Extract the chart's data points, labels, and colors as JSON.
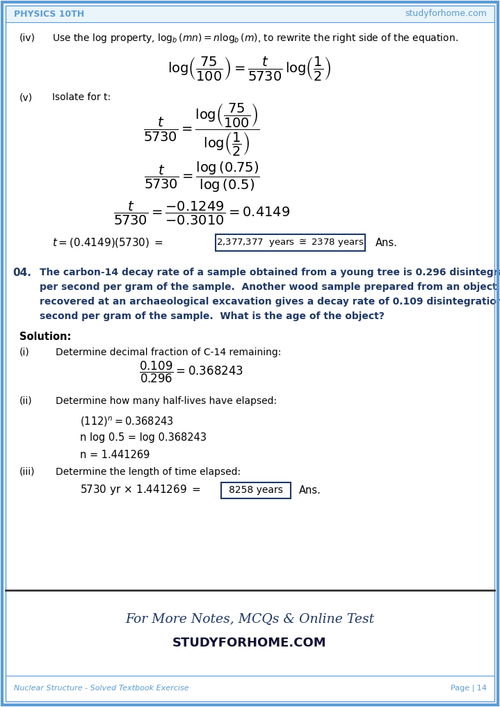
{
  "page_bg": "#ffffff",
  "border_color": "#5b9bd5",
  "header_left": "PHYSICS 10TH",
  "header_right": "studyforhome.com",
  "header_color": "#5b9bd5",
  "footer_left": "Nuclear Structure - Solved Textbook Exercise",
  "footer_right": "Page | 14",
  "footer_color": "#5b9bd5",
  "promo_line1": "For More Notes, MCQs & Online Test",
  "promo_line2": "STUDYFORHOME.COM",
  "promo_color": "#1f3864",
  "question_color": "#1f3864",
  "text_color": "#000000",
  "box_color": "#1f3864"
}
